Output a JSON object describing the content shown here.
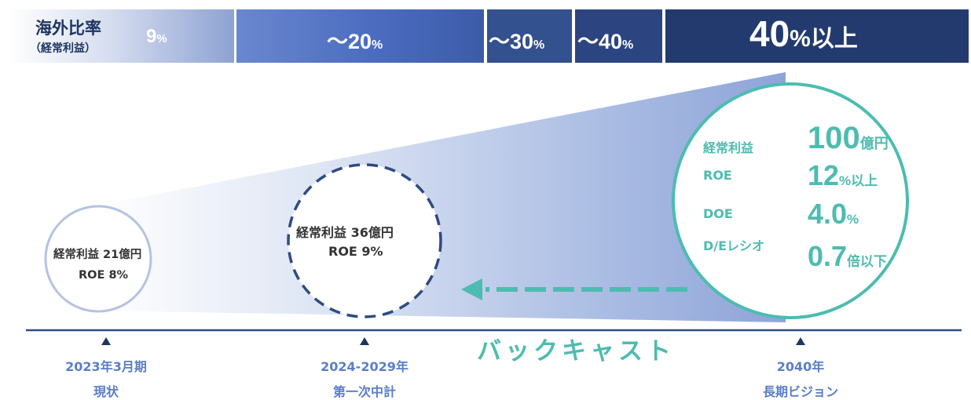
{
  "ratio_bar": {
    "title": "海外比率",
    "subtitle": "（経常利益）",
    "segments": [
      {
        "num": "9",
        "unit": "%",
        "suffix": ""
      },
      {
        "num": "～20",
        "unit": "%",
        "suffix": ""
      },
      {
        "num": "～30",
        "unit": "%",
        "suffix": ""
      },
      {
        "num": "～40",
        "unit": "%",
        "suffix": ""
      },
      {
        "num": "40",
        "unit": "%",
        "suffix": "以上"
      }
    ]
  },
  "current_circle": {
    "line1": "経常利益  21億円",
    "line2": "ROE  8%"
  },
  "plan_circle": {
    "line1": "経常利益  36億円",
    "line2": "ROE    9%"
  },
  "vision_circle": {
    "rows": [
      {
        "label": "経常利益",
        "value": "100",
        "unit": "億円"
      },
      {
        "label": "ROE",
        "value": "12",
        "unit": "%以上"
      },
      {
        "label": "DOE",
        "value": "4.0",
        "unit": "%"
      },
      {
        "label": "D/Eレシオ",
        "value": "0.7",
        "unit": "倍以下"
      }
    ]
  },
  "backcast_label": "バックキャスト",
  "timeline": [
    {
      "line1": "2023年3月期",
      "line2": "現状"
    },
    {
      "line1": "2024-2029年",
      "line2": "第一次中計"
    },
    {
      "line1": "2040年",
      "line2": "長期ビジョン"
    }
  ],
  "colors": {
    "teal": "#4dbcb0",
    "navy": "#2f4a82",
    "timeline_blue": "#5b7ec7"
  }
}
